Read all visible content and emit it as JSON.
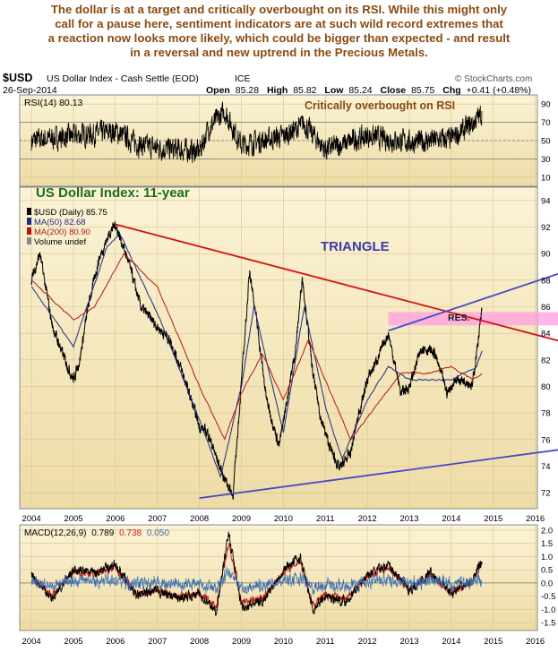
{
  "caption": {
    "lines": [
      "The dollar is at a target and critically overbought on its RSI. While this might only",
      "call for a pause here, sentiment indicators are at such wild record extremes that",
      "a reaction now looks more likely, which could be bigger than expected - and result",
      "in a reversal and new uptrend in the Precious Metals."
    ]
  },
  "header": {
    "symbol": "$USD",
    "name": "US Dollar Index - Cash Settle (EOD)",
    "exchange": "ICE",
    "date": "26-Sep-2014",
    "brand": "© StockCharts.com",
    "open_label": "Open",
    "open": "85.28",
    "high_label": "High",
    "high": "85.82",
    "low_label": "Low",
    "low": "85.24",
    "close_label": "Close",
    "close": "85.75",
    "chg_label": "Chg",
    "chg": "+0.41 (+0.48%)"
  },
  "colors": {
    "panel_bg": "#f4e7bd",
    "price": "#000000",
    "ma50": "#1f2a80",
    "ma200": "#b01818",
    "red_trendline": "#d81010",
    "blue_trendline": "#4848c8",
    "resistance_zone": "#ff9ee0",
    "caption": "#8a4a12",
    "annotation_green": "#1a6e1a",
    "annotation_blue": "#3a3aa8",
    "macd_signal": "#c02020",
    "macd_hist": "#3b6fb0"
  },
  "chart_data": [
    {
      "type": "line",
      "title": "RSI(14) 80.13",
      "annotation": "Critically overbought on RSI",
      "ylim": [
        0,
        100
      ],
      "y_ticks": [
        10,
        30,
        50,
        70,
        90
      ],
      "reference_lines": [
        30,
        50,
        70
      ],
      "grid": true,
      "x": [
        2004.0,
        2005.0,
        2006.0,
        2006.6,
        2007.0,
        2008.0,
        2008.2,
        2008.6,
        2009.0,
        2010.0,
        2010.5,
        2011.0,
        2012.0,
        2013.0,
        2014.0,
        2014.5,
        2014.73
      ],
      "values": [
        50,
        55,
        60,
        45,
        42,
        38,
        62,
        82,
        45,
        55,
        68,
        40,
        55,
        48,
        52,
        68,
        80.13
      ]
    },
    {
      "type": "line",
      "title": "US Dollar Index: 11-year",
      "legend": [
        "$USD (Daily) 85.75",
        "MA(50) 82.68",
        "MA(200) 80.90",
        "Volume undef"
      ],
      "legend_position": "top-left",
      "annotations": [
        "TRIANGLE",
        "RES."
      ],
      "ylim": [
        70.8,
        95
      ],
      "y_ticks": [
        72,
        74,
        76,
        78,
        80,
        82,
        84,
        86,
        88,
        90,
        92,
        94
      ],
      "x_ticks": [
        "2004",
        "2005",
        "2006",
        "2007",
        "2008",
        "2009",
        "2010",
        "2011",
        "2012",
        "2013",
        "2014",
        "2015",
        "2016"
      ],
      "grid": true,
      "series": [
        {
          "name": "$USD (Daily)",
          "x": [
            2004.0,
            2004.2,
            2004.5,
            2004.8,
            2005.0,
            2005.15,
            2005.35,
            2005.6,
            2005.85,
            2006.0,
            2006.3,
            2006.6,
            2007.0,
            2007.3,
            2007.6,
            2008.0,
            2008.2,
            2008.5,
            2008.8,
            2009.2,
            2009.4,
            2009.6,
            2009.9,
            2010.3,
            2010.45,
            2010.7,
            2010.9,
            2011.1,
            2011.33,
            2011.6,
            2011.8,
            2012.0,
            2012.3,
            2012.5,
            2012.8,
            2013.0,
            2013.3,
            2013.6,
            2013.9,
            2014.1,
            2014.35,
            2014.5,
            2014.6,
            2014.73
          ],
          "values": [
            88,
            90,
            84.5,
            82,
            80.5,
            82,
            86,
            89.5,
            91.5,
            92.2,
            89.5,
            86,
            84.5,
            83.5,
            81,
            77,
            76.5,
            73.8,
            71.8,
            88.8,
            84,
            79,
            75.5,
            83,
            88.3,
            81,
            77.5,
            75.5,
            73.8,
            75,
            78,
            80.5,
            82.5,
            84,
            79.5,
            80,
            83,
            82.5,
            79.5,
            80.5,
            80.5,
            80,
            82.5,
            85.75
          ]
        },
        {
          "name": "MA(50)",
          "x": [
            2004.0,
            2005.0,
            2005.8,
            2006.1,
            2007.0,
            2008.0,
            2008.5,
            2009.0,
            2009.3,
            2010.0,
            2010.5,
            2011.0,
            2011.4,
            2012.0,
            2012.5,
            2013.0,
            2014.0,
            2014.6,
            2014.73
          ],
          "values": [
            87.5,
            83,
            90.5,
            91.5,
            85.5,
            77.5,
            73.2,
            80,
            86,
            76.5,
            86,
            78.5,
            74.5,
            79,
            81.5,
            80.5,
            80.5,
            81.5,
            82.68
          ]
        },
        {
          "name": "MA(200)",
          "x": [
            2004.0,
            2005.0,
            2005.5,
            2006.2,
            2007.0,
            2008.0,
            2008.6,
            2009.0,
            2009.5,
            2010.0,
            2010.6,
            2011.0,
            2011.6,
            2012.2,
            2012.8,
            2013.5,
            2014.0,
            2014.5,
            2014.73
          ],
          "values": [
            88,
            85,
            86,
            90,
            87.5,
            80,
            76,
            79.5,
            82.5,
            79,
            83.5,
            80.5,
            76,
            78.5,
            81,
            81,
            81.5,
            80.5,
            80.9
          ]
        }
      ],
      "trendlines": [
        {
          "from": [
            2006.0,
            92.2
          ],
          "to": [
            2016.0,
            83.9
          ]
        },
        {
          "from": [
            2008.0,
            71.6
          ],
          "to": [
            2016.0,
            75.0
          ]
        },
        {
          "from": [
            2012.5,
            84.2
          ],
          "to": [
            2016.0,
            87.9
          ]
        }
      ],
      "resistance_band": {
        "x": [
          2012.5,
          2016.0
        ],
        "y": [
          84.6,
          85.6
        ]
      }
    },
    {
      "type": "line",
      "title": "MACD(12,26,9)",
      "legend_values": [
        "0.789",
        "0.738",
        "0.050"
      ],
      "ylim": [
        -1.8,
        2.2
      ],
      "y_ticks": [
        -1.5,
        -1.0,
        -0.5,
        0.0,
        0.5,
        1.0,
        1.5,
        2.0
      ],
      "x_ticks": [
        "2004",
        "2005",
        "2006",
        "2007",
        "2008",
        "2009",
        "2010",
        "2011",
        "2012",
        "2013",
        "2014",
        "2015",
        "2016"
      ],
      "grid": true,
      "series": [
        {
          "name": "MACD",
          "x": [
            2004.0,
            2004.5,
            2005.0,
            2005.5,
            2006.0,
            2006.5,
            2007.0,
            2007.5,
            2008.0,
            2008.4,
            2008.7,
            2009.0,
            2009.5,
            2010.0,
            2010.4,
            2010.7,
            2011.0,
            2011.5,
            2012.0,
            2012.5,
            2013.0,
            2013.5,
            2014.0,
            2014.5,
            2014.73
          ],
          "values": [
            0.3,
            -0.6,
            0.5,
            0.4,
            0.7,
            -0.5,
            -0.3,
            -0.6,
            -0.4,
            -1.1,
            1.9,
            -0.9,
            -0.7,
            0.5,
            1.0,
            -1.0,
            -0.5,
            -0.7,
            0.3,
            0.7,
            -0.3,
            0.4,
            -0.4,
            0.1,
            0.789
          ]
        },
        {
          "name": "Signal",
          "x": [
            2004.0,
            2004.5,
            2005.0,
            2005.5,
            2006.0,
            2006.5,
            2007.0,
            2007.5,
            2008.0,
            2008.4,
            2008.7,
            2009.0,
            2009.5,
            2010.0,
            2010.4,
            2010.7,
            2011.0,
            2011.5,
            2012.0,
            2012.5,
            2013.0,
            2013.5,
            2014.0,
            2014.5,
            2014.73
          ],
          "values": [
            0.2,
            -0.5,
            0.4,
            0.35,
            0.6,
            -0.4,
            -0.3,
            -0.5,
            -0.4,
            -0.9,
            1.5,
            -0.7,
            -0.6,
            0.4,
            0.85,
            -0.8,
            -0.45,
            -0.6,
            0.25,
            0.6,
            -0.25,
            0.3,
            -0.35,
            0.05,
            0.738
          ]
        }
      ]
    }
  ]
}
